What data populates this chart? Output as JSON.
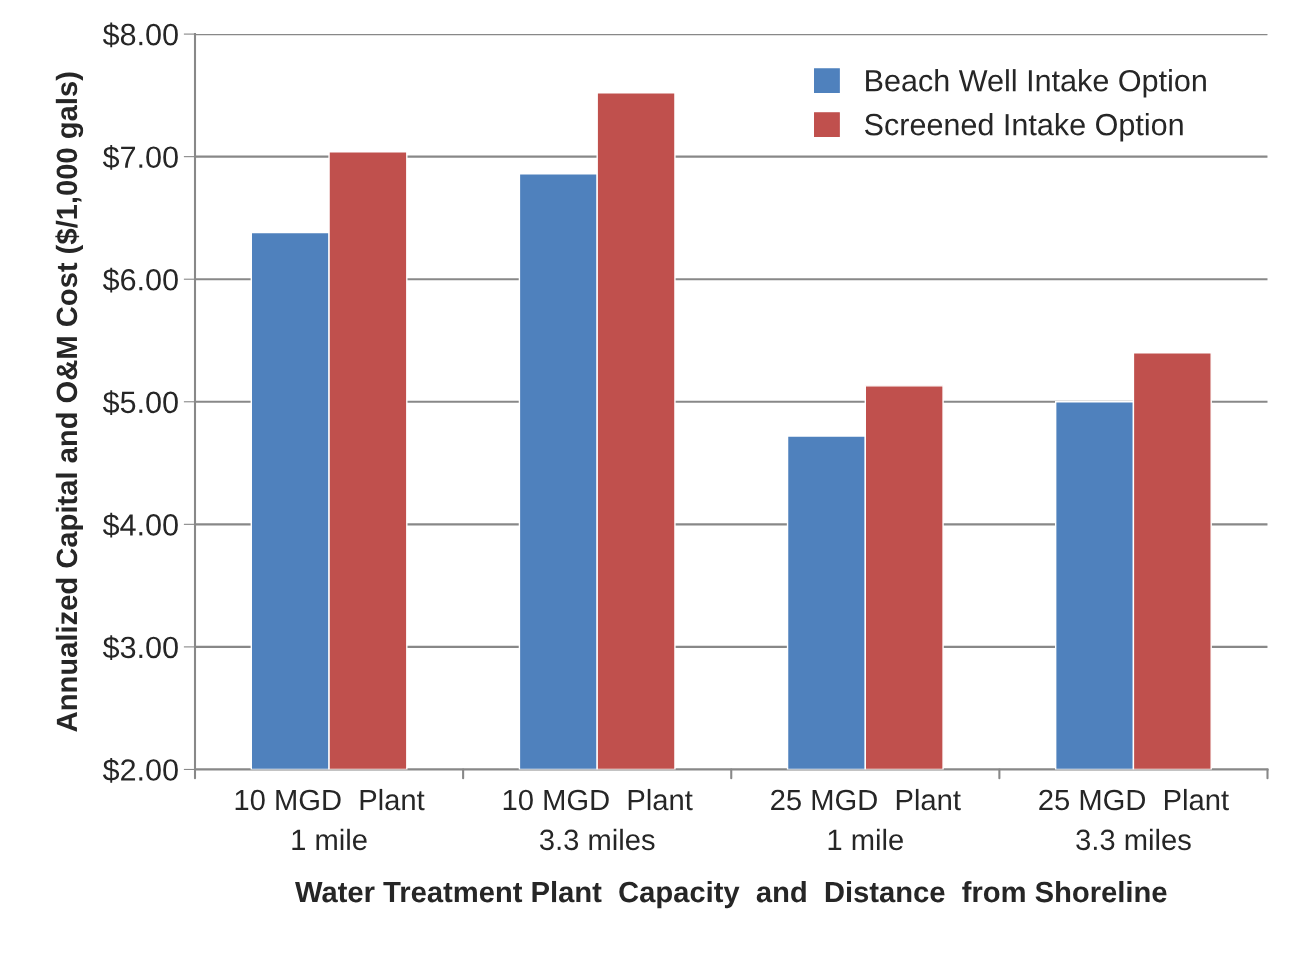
{
  "chart_data": {
    "type": "bar",
    "xlabel": "Water Treatment Plant  Capacity  and  Distance  from Shoreline",
    "ylabel": "Annualized Capital and O&M Cost ($/1,000 gals)",
    "categories": [
      "10 MGD  Plant\n1 mile",
      "10 MGD  Plant\n3.3 miles",
      "25 MGD  Plant\n1 mile",
      "25 MGD  Plant\n3.3 miles"
    ],
    "series": [
      {
        "name": "Beach Well Intake Option",
        "color": "#4f81bd",
        "values": [
          6.38,
          6.86,
          4.72,
          5.0
        ]
      },
      {
        "name": "Screened Intake Option",
        "color": "#c0504d",
        "values": [
          7.04,
          7.52,
          5.13,
          5.4
        ]
      }
    ],
    "ylim": [
      2,
      8
    ],
    "yticks": [
      {
        "value": 2,
        "label": "$2.00"
      },
      {
        "value": 3,
        "label": "$3.00"
      },
      {
        "value": 4,
        "label": "$4.00"
      },
      {
        "value": 5,
        "label": "$5.00"
      },
      {
        "value": 6,
        "label": "$6.00"
      },
      {
        "value": 7,
        "label": "$7.00"
      },
      {
        "value": 8,
        "label": "$8.00"
      }
    ],
    "grid": "y",
    "legend": "top right"
  }
}
